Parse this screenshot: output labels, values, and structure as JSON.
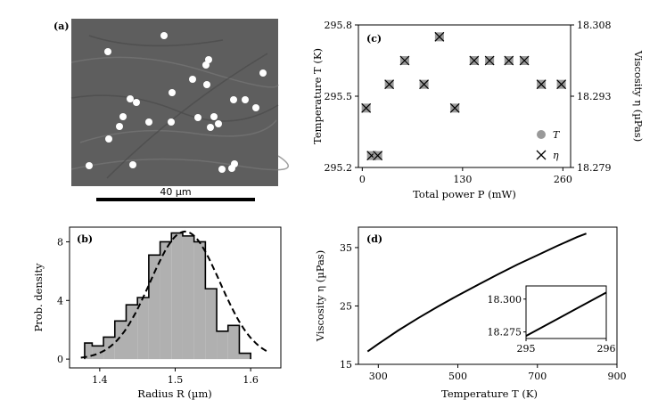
{
  "chart_data": [
    {
      "panel": "(a)",
      "type": "image",
      "description_label": "microscope image of particles",
      "scale_bar_label": "40 µm"
    },
    {
      "panel": "(b)",
      "type": "histogram",
      "xlabel": "Radius R (µm)",
      "ylabel": "Prob. density",
      "xlim": [
        1.36,
        1.64
      ],
      "ylim": [
        -0.6,
        9.0
      ],
      "xticks": [
        "1.4",
        "1.5",
        "1.6"
      ],
      "xtick_values": [
        1.4,
        1.5,
        1.6
      ],
      "yticks": [
        "0",
        "4",
        "8"
      ],
      "ytick_values": [
        0,
        4,
        8
      ],
      "bin_edges": [
        1.38,
        1.39,
        1.405,
        1.42,
        1.435,
        1.45,
        1.465,
        1.48,
        1.495,
        1.51,
        1.525,
        1.54,
        1.555,
        1.57,
        1.585,
        1.6
      ],
      "bin_values": [
        1.1,
        0.9,
        1.5,
        2.6,
        3.7,
        4.2,
        7.1,
        8.0,
        8.6,
        8.4,
        8.0,
        4.8,
        1.9,
        2.3,
        0.4
      ],
      "fit": {
        "type": "gaussian",
        "mean": 1.513,
        "sigma": 0.046,
        "peak": 8.7,
        "x_range": [
          1.375,
          1.625
        ]
      }
    },
    {
      "panel": "(c)",
      "type": "scatter",
      "xlabel": "Total power P (mW)",
      "ylabel_left": "Temperature T (K)",
      "ylabel_right": "Viscosity η (µPas)",
      "xlim": [
        -5,
        270
      ],
      "ylim_left": [
        295.2,
        295.8
      ],
      "ylim_right": [
        18.279,
        18.308
      ],
      "xticks": [
        "0",
        "130",
        "260"
      ],
      "xtick_values": [
        0,
        130,
        260
      ],
      "yticks_left": [
        "295.2",
        "295.5",
        "295.8"
      ],
      "ytick_values_left": [
        295.2,
        295.5,
        295.8
      ],
      "yticks_right": [
        "18.279",
        "18.293",
        "18.308"
      ],
      "legend": [
        {
          "label": "T",
          "marker": "gray-circle"
        },
        {
          "label": "η",
          "marker": "x"
        }
      ],
      "legend_position": "bottom-right",
      "points": [
        {
          "x": 5,
          "T": 295.45
        },
        {
          "x": 12,
          "T": 295.25
        },
        {
          "x": 20,
          "T": 295.25
        },
        {
          "x": 35,
          "T": 295.55
        },
        {
          "x": 55,
          "T": 295.65
        },
        {
          "x": 80,
          "T": 295.55
        },
        {
          "x": 100,
          "T": 295.75
        },
        {
          "x": 120,
          "T": 295.45
        },
        {
          "x": 145,
          "T": 295.65
        },
        {
          "x": 165,
          "T": 295.65
        },
        {
          "x": 190,
          "T": 295.65
        },
        {
          "x": 210,
          "T": 295.65
        },
        {
          "x": 232,
          "T": 295.55
        },
        {
          "x": 258,
          "T": 295.55
        }
      ]
    },
    {
      "panel": "(d)",
      "type": "line",
      "xlabel": "Temperature T (K)",
      "ylabel": "Viscosity η (µPas)",
      "xlim": [
        250,
        900
      ],
      "ylim": [
        15,
        38.5
      ],
      "xticks": [
        "300",
        "500",
        "700",
        "900"
      ],
      "xtick_values": [
        300,
        500,
        700,
        900
      ],
      "yticks": [
        "15",
        "25",
        "35"
      ],
      "ytick_values": [
        15,
        25,
        35
      ],
      "curve": [
        [
          273,
          17.2
        ],
        [
          300,
          18.5
        ],
        [
          350,
          20.8
        ],
        [
          400,
          22.9
        ],
        [
          450,
          24.9
        ],
        [
          500,
          26.8
        ],
        [
          550,
          28.6
        ],
        [
          600,
          30.4
        ],
        [
          650,
          32.1
        ],
        [
          700,
          33.7
        ],
        [
          750,
          35.3
        ],
        [
          800,
          36.8
        ],
        [
          823,
          37.4
        ]
      ],
      "inset": {
        "xlim": [
          295,
          296
        ],
        "ylim": [
          18.27,
          18.31
        ],
        "xticks": [
          "295",
          "296"
        ],
        "xtick_values": [
          295,
          296
        ],
        "yticks": [
          "18.275",
          "18.300"
        ],
        "ytick_values": [
          18.275,
          18.3
        ],
        "curve": [
          [
            295.0,
            18.272
          ],
          [
            296.0,
            18.305
          ]
        ]
      }
    }
  ]
}
